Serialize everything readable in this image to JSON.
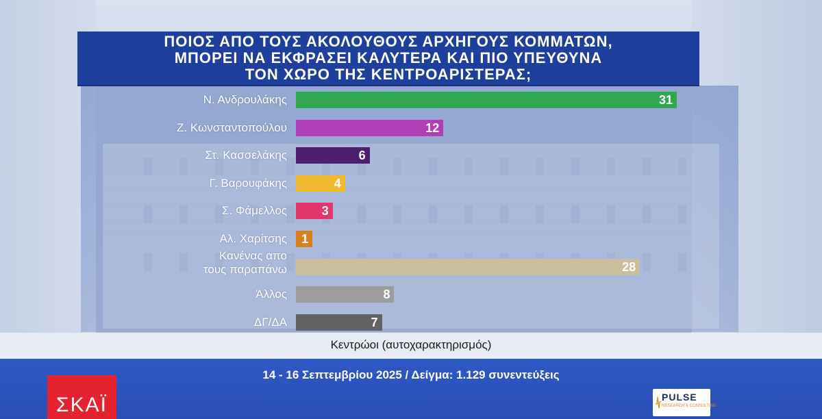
{
  "title_lines": [
    "ΠΟΙΟΣ ΑΠΟ ΤΟΥΣ ΑΚΟΛΟΥΘΟΥΣ ΑΡΧΗΓΟΥΣ ΚΟΜΜΑΤΩΝ,",
    "ΜΠΟΡΕΙ ΝΑ ΕΚΦΡΑΣΕΙ ΚΑΛΥΤΕΡΑ ΚΑΙ ΠΙΟ ΥΠΕΥΘΥΝΑ",
    "ΤΟΝ ΧΩΡΟ ΤΗΣ ΚΕΝΤΡΟΑΡΙΣΤΕΡΑΣ;"
  ],
  "chart_data": {
    "type": "bar",
    "orientation": "horizontal",
    "title": "ΠΟΙΟΣ ΑΠΟ ΤΟΥΣ ΑΚΟΛΟΥΘΟΥΣ ΑΡΧΗΓΟΥΣ ΚΟΜΜΑΤΩΝ, ΜΠΟΡΕΙ ΝΑ ΕΚΦΡΑΣΕΙ ΚΑΛΥΤΕΡΑ ΚΑΙ ΠΙΟ ΥΠΕΥΘΥΝΑ ΤΟΝ ΧΩΡΟ ΤΗΣ ΚΕΝΤΡΟΑΡΙΣΤΕΡΑΣ;",
    "subtitle": "Κεντρώοι (αυτοχαρακτηρισμός)",
    "categories": [
      [
        "Ν. Ανδρουλάκης"
      ],
      [
        "Ζ. Κωνσταντοπούλου"
      ],
      [
        "Στ. Κασσελάκης"
      ],
      [
        "Γ. Βαρουφάκης"
      ],
      [
        "Σ. Φάμελλος"
      ],
      [
        "Αλ. Χαρίτσης"
      ],
      [
        "Κανένας απο",
        "τους παραπάνω"
      ],
      [
        "Άλλος"
      ],
      [
        "ΔΓ/ΔΑ"
      ]
    ],
    "values": [
      31,
      12,
      6,
      4,
      3,
      1,
      28,
      8,
      7
    ],
    "colors": [
      "#2fa84f",
      "#b13db7",
      "#4e1f6e",
      "#f0b92f",
      "#e2356b",
      "#d9801f",
      "#c9bf9c",
      "#9d9d9d",
      "#626262"
    ],
    "xlim": [
      0,
      31
    ],
    "grid": false,
    "legend": "none"
  },
  "footer": {
    "source": "14 - 16 Σεπτεμβρίου 2025 / Δείγμα: 1.129 συνεντεύξεις"
  },
  "branding": {
    "channel_logo": "ΣΚΑΪ",
    "pollster_logo": "PULSE",
    "pollster_sub": "RESEARCH & CONSULTING"
  }
}
